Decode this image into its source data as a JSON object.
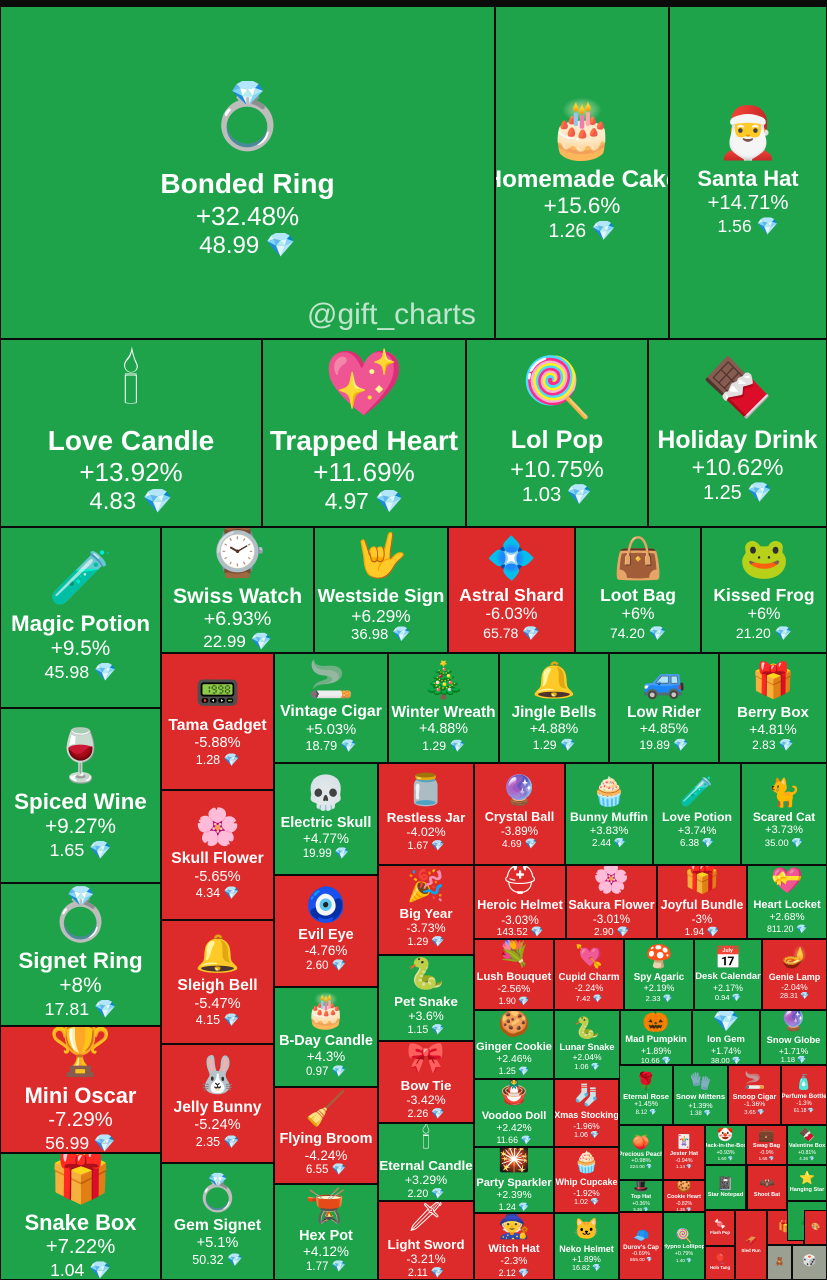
{
  "watermark": "@gift_charts",
  "icons": {
    "diamond": "💎"
  },
  "colors": {
    "up": "#1ea34a",
    "down": "#dd2a2a",
    "background": "#0b0b0b",
    "diamond": "#6fd0ff"
  },
  "chart_data": {
    "type": "treemap",
    "value_unit": "TON",
    "items": [
      {
        "name": "Bonded Ring",
        "change": "+32.48%",
        "price": "48.99",
        "icon": "💍",
        "trend": "up"
      },
      {
        "name": "Homemade Cake",
        "change": "+15.6%",
        "price": "1.26",
        "icon": "🎂",
        "trend": "up"
      },
      {
        "name": "Santa Hat",
        "change": "+14.71%",
        "price": "1.56",
        "icon": "🎅",
        "trend": "up"
      },
      {
        "name": "Love Candle",
        "change": "+13.92%",
        "price": "4.83",
        "icon": "🕯",
        "trend": "up"
      },
      {
        "name": "Trapped Heart",
        "change": "+11.69%",
        "price": "4.97",
        "icon": "💖",
        "trend": "up"
      },
      {
        "name": "Lol Pop",
        "change": "+10.75%",
        "price": "1.03",
        "icon": "🍭",
        "trend": "up"
      },
      {
        "name": "Holiday Drink",
        "change": "+10.62%",
        "price": "1.25",
        "icon": "🍫",
        "trend": "up"
      },
      {
        "name": "Magic Potion",
        "change": "+9.5%",
        "price": "45.98",
        "icon": "🧪",
        "trend": "up"
      },
      {
        "name": "Swiss Watch",
        "change": "+6.93%",
        "price": "22.99",
        "icon": "⌚",
        "trend": "up"
      },
      {
        "name": "Westside Sign",
        "change": "+6.29%",
        "price": "36.98",
        "icon": "🤟",
        "trend": "up"
      },
      {
        "name": "Astral Shard",
        "change": "-6.03%",
        "price": "65.78",
        "icon": "💠",
        "trend": "down"
      },
      {
        "name": "Loot Bag",
        "change": "+6%",
        "price": "74.20",
        "icon": "👜",
        "trend": "up"
      },
      {
        "name": "Kissed Frog",
        "change": "+6%",
        "price": "21.20",
        "icon": "🐸",
        "trend": "up"
      },
      {
        "name": "Tama Gadget",
        "change": "-5.88%",
        "price": "1.28",
        "icon": "📟",
        "trend": "down"
      },
      {
        "name": "Vintage Cigar",
        "change": "+5.03%",
        "price": "18.79",
        "icon": "🚬",
        "trend": "up"
      },
      {
        "name": "Winter Wreath",
        "change": "+4.88%",
        "price": "1.29",
        "icon": "🎄",
        "trend": "up"
      },
      {
        "name": "Jingle Bells",
        "change": "+4.88%",
        "price": "1.29",
        "icon": "🔔",
        "trend": "up"
      },
      {
        "name": "Low Rider",
        "change": "+4.85%",
        "price": "19.89",
        "icon": "🚙",
        "trend": "up"
      },
      {
        "name": "Berry Box",
        "change": "+4.81%",
        "price": "2.83",
        "icon": "🎁",
        "trend": "up"
      },
      {
        "name": "Spiced Wine",
        "change": "+9.27%",
        "price": "1.65",
        "icon": "🍷",
        "trend": "up"
      },
      {
        "name": "Skull Flower",
        "change": "-5.65%",
        "price": "4.34",
        "icon": "🌸",
        "trend": "down"
      },
      {
        "name": "Electric Skull",
        "change": "+4.77%",
        "price": "19.99",
        "icon": "💀",
        "trend": "up"
      },
      {
        "name": "Restless Jar",
        "change": "-4.02%",
        "price": "1.67",
        "icon": "🫙",
        "trend": "down"
      },
      {
        "name": "Crystal Ball",
        "change": "-3.89%",
        "price": "4.69",
        "icon": "🔮",
        "trend": "down"
      },
      {
        "name": "Bunny Muffin",
        "change": "+3.83%",
        "price": "2.44",
        "icon": "🧁",
        "trend": "up"
      },
      {
        "name": "Love Potion",
        "change": "+3.74%",
        "price": "6.38",
        "icon": "🧪",
        "trend": "up"
      },
      {
        "name": "Scared Cat",
        "change": "+3.73%",
        "price": "35.00",
        "icon": "🐈",
        "trend": "up"
      },
      {
        "name": "Big Year",
        "change": "-3.73%",
        "price": "1.29",
        "icon": "🎉",
        "trend": "down"
      },
      {
        "name": "Heroic Helmet",
        "change": "-3.03%",
        "price": "143.52",
        "icon": "⛑",
        "trend": "down"
      },
      {
        "name": "Sakura Flower",
        "change": "-3.01%",
        "price": "2.90",
        "icon": "🌸",
        "trend": "down"
      },
      {
        "name": "Joyful Bundle",
        "change": "-3%",
        "price": "1.94",
        "icon": "🎁",
        "trend": "down"
      },
      {
        "name": "Heart Locket",
        "change": "+2.68%",
        "price": "811.20",
        "icon": "💝",
        "trend": "up"
      },
      {
        "name": "Signet Ring",
        "change": "+8%",
        "price": "17.81",
        "icon": "💍",
        "trend": "up"
      },
      {
        "name": "Sleigh Bell",
        "change": "-5.47%",
        "price": "4.15",
        "icon": "🔔",
        "trend": "down"
      },
      {
        "name": "Evil Eye",
        "change": "-4.76%",
        "price": "2.60",
        "icon": "🧿",
        "trend": "down"
      },
      {
        "name": "Pet Snake",
        "change": "+3.6%",
        "price": "1.15",
        "icon": "🐍",
        "trend": "up"
      },
      {
        "name": "Lush Bouquet",
        "change": "-2.56%",
        "price": "1.90",
        "icon": "💐",
        "trend": "down"
      },
      {
        "name": "Cupid Charm",
        "change": "-2.24%",
        "price": "7.42",
        "icon": "💘",
        "trend": "down"
      },
      {
        "name": "Spy Agaric",
        "change": "+2.19%",
        "price": "2.33",
        "icon": "🍄",
        "trend": "up"
      },
      {
        "name": "Desk Calendar",
        "change": "+2.17%",
        "price": "0.94",
        "icon": "📅",
        "trend": "up"
      },
      {
        "name": "Genie Lamp",
        "change": "-2.04%",
        "price": "28.31",
        "icon": "🪔",
        "trend": "down"
      },
      {
        "name": "B-Day Candle",
        "change": "+4.3%",
        "price": "0.97",
        "icon": "🎂",
        "trend": "up"
      },
      {
        "name": "Ginger Cookie",
        "change": "+2.46%",
        "price": "1.25",
        "icon": "🍪",
        "trend": "up"
      },
      {
        "name": "Lunar Snake",
        "change": "+2.04%",
        "price": "1.06",
        "icon": "🐍",
        "trend": "up"
      },
      {
        "name": "Mad Pumpkin",
        "change": "+1.89%",
        "price": "10.66",
        "icon": "🎃",
        "trend": "up"
      },
      {
        "name": "Ion Gem",
        "change": "+1.74%",
        "price": "38.00",
        "icon": "💎",
        "trend": "up"
      },
      {
        "name": "Snow Globe",
        "change": "+1.71%",
        "price": "1.18",
        "icon": "🔮",
        "trend": "up"
      },
      {
        "name": "Mini Oscar",
        "change": "-7.29%",
        "price": "56.99",
        "icon": "🏆",
        "trend": "down"
      },
      {
        "name": "Jelly Bunny",
        "change": "-5.24%",
        "price": "2.35",
        "icon": "🐰",
        "trend": "down"
      },
      {
        "name": "Flying Broom",
        "change": "-4.24%",
        "price": "6.55",
        "icon": "🧹",
        "trend": "down"
      },
      {
        "name": "Bow Tie",
        "change": "-3.42%",
        "price": "2.26",
        "icon": "🎀",
        "trend": "down"
      },
      {
        "name": "Voodoo Doll",
        "change": "+2.42%",
        "price": "11.66",
        "icon": "🪆",
        "trend": "up"
      },
      {
        "name": "Xmas Stocking",
        "change": "-1.96%",
        "price": "1.06",
        "icon": "🧦",
        "trend": "down"
      },
      {
        "name": "Eternal Rose",
        "change": "+1.45%",
        "price": "8.12",
        "icon": "🌹",
        "trend": "up"
      },
      {
        "name": "Snow Mittens",
        "change": "+1.39%",
        "price": "1.38",
        "icon": "🧤",
        "trend": "up"
      },
      {
        "name": "Snoop Cigar",
        "change": "-1.36%",
        "price": "3.65",
        "icon": "🚬",
        "trend": "down"
      },
      {
        "name": "Perfume Bottle",
        "change": "-1.3%",
        "price": "61.18",
        "icon": "🧴",
        "trend": "down"
      },
      {
        "name": "Eternal Candle",
        "change": "+3.29%",
        "price": "2.20",
        "icon": "🕯",
        "trend": "up"
      },
      {
        "name": "Party Sparkler",
        "change": "+2.39%",
        "price": "1.24",
        "icon": "🎇",
        "trend": "up"
      },
      {
        "name": "Whip Cupcake",
        "change": "-1.92%",
        "price": "1.02",
        "icon": "🧁",
        "trend": "down"
      },
      {
        "name": "Precious Peach",
        "change": "+0.98%",
        "price": "224.00",
        "icon": "🍑",
        "trend": "up"
      },
      {
        "name": "Jester Hat",
        "change": "-0.94%",
        "price": "1.14",
        "icon": "🃏",
        "trend": "down"
      },
      {
        "name": "Jack-in-the-Box",
        "change": "+0.93%",
        "price": "1.60",
        "icon": "🤡",
        "trend": "up"
      },
      {
        "name": "Swag Bag",
        "change": "-0.9%",
        "price": "1.66",
        "icon": "💼",
        "trend": "down"
      },
      {
        "name": "Valentine Box",
        "change": "+0.81%",
        "price": "4.36",
        "icon": "🍫",
        "trend": "up"
      },
      {
        "name": "Top Hat",
        "change": "+0.36%",
        "price": "5.36",
        "icon": "🎩",
        "trend": "up"
      },
      {
        "name": "Cookie Heart",
        "change": "-0.82%",
        "price": "1.35",
        "icon": "🍪",
        "trend": "down"
      },
      {
        "name": "Star Notepad",
        "change": "",
        "price": "",
        "icon": "📓",
        "trend": "up"
      },
      {
        "name": "Gem Signet",
        "change": "+5.1%",
        "price": "50.32",
        "icon": "💍",
        "trend": "up"
      },
      {
        "name": "Snake Box",
        "change": "+7.22%",
        "price": "1.04",
        "icon": "🎁",
        "trend": "up"
      },
      {
        "name": "Hex Pot",
        "change": "+4.12%",
        "price": "1.77",
        "icon": "🫕",
        "trend": "up"
      },
      {
        "name": "Light Sword",
        "change": "-3.21%",
        "price": "2.11",
        "icon": "🗡",
        "trend": "down"
      },
      {
        "name": "Witch Hat",
        "change": "-2.3%",
        "price": "2.12",
        "icon": "🧙",
        "trend": "down"
      },
      {
        "name": "Neko Helmet",
        "change": "+1.89%",
        "price": "16.82",
        "icon": "🐱",
        "trend": "up"
      },
      {
        "name": "Durov's Cap",
        "change": "-0.69%",
        "price": "555.00",
        "icon": "🧢",
        "trend": "down"
      },
      {
        "name": "Hypno Lollipop",
        "change": "+0.79%",
        "price": "1.40",
        "icon": "🍭",
        "trend": "up"
      },
      {
        "name": "Flash Pop",
        "change": "",
        "price": "",
        "icon": "🍬",
        "trend": "down"
      },
      {
        "name": "Holo Tang",
        "change": "",
        "price": "",
        "icon": "🎈",
        "trend": "down"
      },
      {
        "name": "Sled Run",
        "change": "",
        "price": "",
        "icon": "🛷",
        "trend": "down"
      },
      {
        "name": "Shoot Bat",
        "change": "",
        "price": "",
        "icon": "🦇",
        "trend": "down"
      },
      {
        "name": "Hanging Star",
        "change": "",
        "price": "",
        "icon": "⭐",
        "trend": "up"
      },
      {
        "name": "",
        "change": "",
        "price": "",
        "icon": "🎁",
        "trend": "down"
      },
      {
        "name": "",
        "change": "",
        "price": "",
        "icon": "🎄",
        "trend": "up"
      },
      {
        "name": "",
        "change": "",
        "price": "",
        "icon": "🎨",
        "trend": "down"
      },
      {
        "name": "",
        "change": "",
        "price": "",
        "icon": "🧸",
        "trend": "gray"
      },
      {
        "name": "",
        "change": "",
        "price": "",
        "icon": "🎲",
        "trend": "gray"
      },
      {
        "name": "",
        "change": "",
        "price": "",
        "icon": "🎈",
        "trend": "gray"
      }
    ]
  }
}
